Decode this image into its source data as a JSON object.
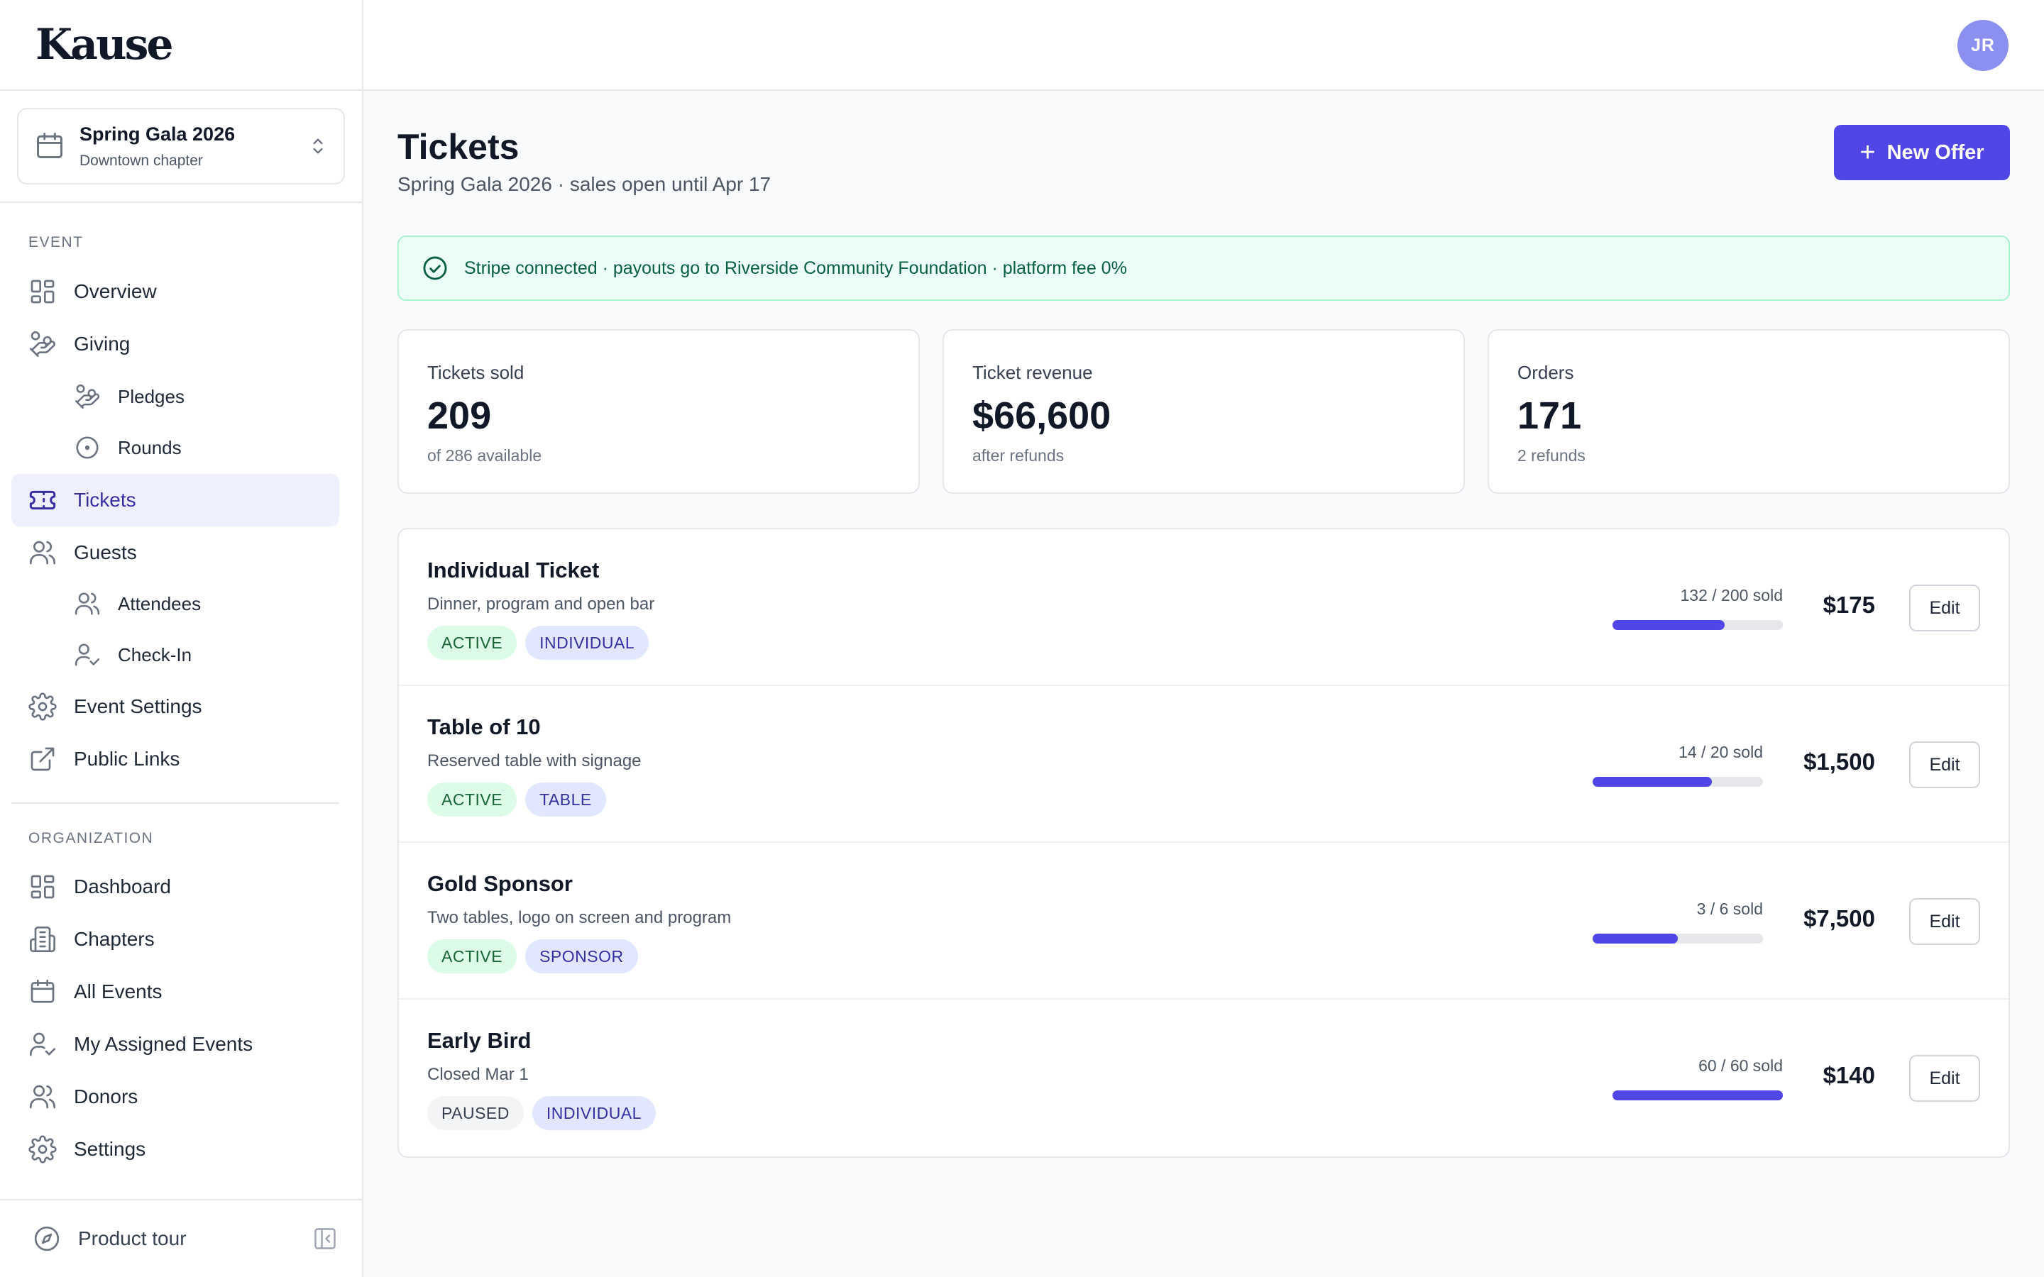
{
  "app": {
    "brand": "Kause"
  },
  "event_selector": {
    "name": "Spring Gala 2026",
    "subtitle": "Downtown chapter"
  },
  "sidebar": {
    "event_section_label": "EVENT",
    "event_items": [
      {
        "label": "Overview",
        "icon": "grid-icon"
      },
      {
        "label": "Giving",
        "icon": "hand-coins-icon"
      },
      {
        "label": "Pledges",
        "icon": "hand-coins-icon"
      },
      {
        "label": "Rounds",
        "icon": "circle-dot-icon"
      },
      {
        "label": "Tickets",
        "icon": "ticket-icon",
        "active": true
      },
      {
        "label": "Guests",
        "icon": "users-icon"
      },
      {
        "label": "Attendees",
        "icon": "users-icon"
      },
      {
        "label": "Check-In",
        "icon": "user-check-icon"
      },
      {
        "label": "Event Settings",
        "icon": "gear-icon"
      },
      {
        "label": "Public Links",
        "icon": "external-link-icon"
      }
    ],
    "org_section_label": "ORGANIZATION",
    "org_items": [
      {
        "label": "Dashboard",
        "icon": "grid-icon"
      },
      {
        "label": "Chapters",
        "icon": "building-icon"
      },
      {
        "label": "All Events",
        "icon": "calendar-icon"
      },
      {
        "label": "My Assigned Events",
        "icon": "user-check-icon"
      },
      {
        "label": "Donors",
        "icon": "users-icon"
      },
      {
        "label": "Settings",
        "icon": "gear-icon"
      }
    ],
    "footer": {
      "tour_label": "Product tour"
    }
  },
  "header": {
    "avatar_initials": "JR"
  },
  "page": {
    "title": "Tickets",
    "subtitle": "Spring Gala 2026 · sales open until Apr 17",
    "new_offer_label": "New Offer"
  },
  "banner": {
    "text": "Stripe connected · payouts go to Riverside Community Foundation · platform fee 0%"
  },
  "stats": [
    {
      "label": "Tickets sold",
      "value": "209",
      "note": "of 286 available"
    },
    {
      "label": "Ticket revenue",
      "value": "$66,600",
      "note": "after refunds"
    },
    {
      "label": "Orders",
      "value": "171",
      "note": "2 refunds"
    }
  ],
  "offers": [
    {
      "name": "Individual Ticket",
      "description": "Dinner, program and open bar",
      "status": "ACTIVE",
      "type": "INDIVIDUAL",
      "sold_text": "132 / 200 sold",
      "sold_fraction": 0.66,
      "price": "$175",
      "edit_label": "Edit"
    },
    {
      "name": "Table of 10",
      "description": "Reserved table with signage",
      "status": "ACTIVE",
      "type": "TABLE",
      "sold_text": "14 / 20 sold",
      "sold_fraction": 0.7,
      "price": "$1,500",
      "edit_label": "Edit"
    },
    {
      "name": "Gold Sponsor",
      "description": "Two tables, logo on screen and program",
      "status": "ACTIVE",
      "type": "SPONSOR",
      "sold_text": "3 / 6 sold",
      "sold_fraction": 0.5,
      "price": "$7,500",
      "edit_label": "Edit"
    },
    {
      "name": "Early Bird",
      "description": "Closed Mar 1",
      "status": "PAUSED",
      "type": "INDIVIDUAL",
      "sold_text": "60 / 60 sold",
      "sold_fraction": 1.0,
      "price": "$140",
      "edit_label": "Edit"
    }
  ],
  "colors": {
    "accent": "#4f46e5",
    "active_nav_bg": "#eef0fd",
    "success_bg": "#ecfdf5",
    "success_text": "#065f46"
  }
}
